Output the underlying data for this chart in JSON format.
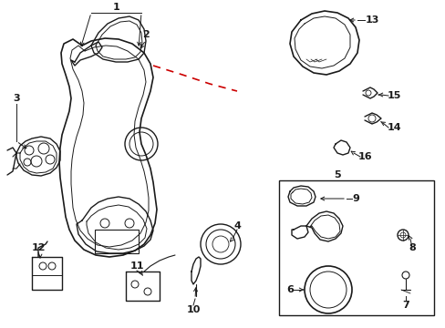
{
  "bg_color": "#ffffff",
  "line_color": "#1a1a1a",
  "red_color": "#cc0000",
  "figsize": [
    4.89,
    3.6
  ],
  "dpi": 100
}
